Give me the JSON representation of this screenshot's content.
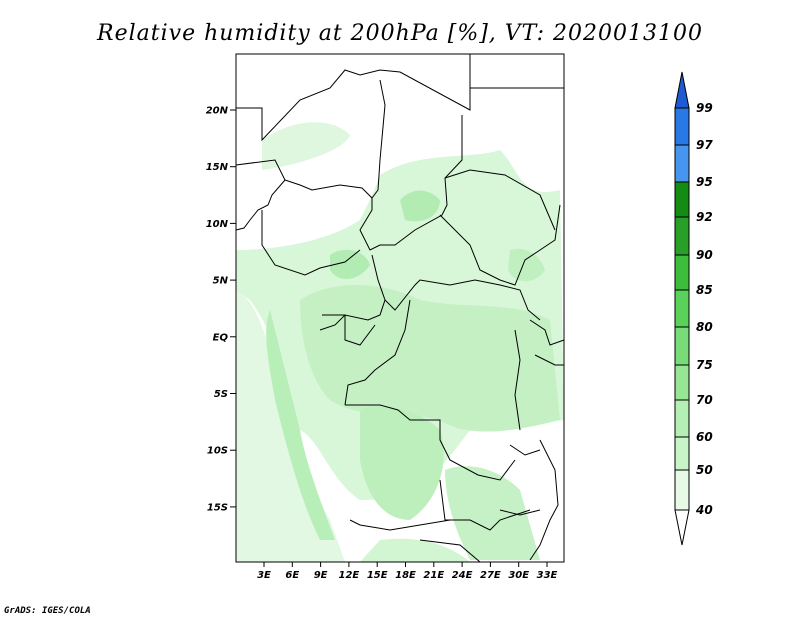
{
  "title": "Relative humidity at 200hPa [%], VT: 2020013100",
  "credit": "GrADS: IGES/COLA",
  "map": {
    "lat_labels": [
      "20N",
      "15N",
      "10N",
      "5N",
      "EQ",
      "5S",
      "10S",
      "15S"
    ],
    "lon_labels": [
      "3E",
      "6E",
      "9E",
      "12E",
      "15E",
      "18E",
      "21E",
      "24E",
      "27E",
      "30E",
      "33E"
    ]
  },
  "colorbar": {
    "levels": [
      "40",
      "50",
      "60",
      "70",
      "75",
      "80",
      "85",
      "90",
      "92",
      "95",
      "97",
      "99"
    ],
    "colors": [
      "#ffffff",
      "#e6fae6",
      "#c8f5c8",
      "#b4f0b4",
      "#96e696",
      "#78dc78",
      "#5ad25a",
      "#3cbe3c",
      "#28a028",
      "#148c14",
      "#4696f0",
      "#2878e6",
      "#1e5ad2"
    ]
  }
}
